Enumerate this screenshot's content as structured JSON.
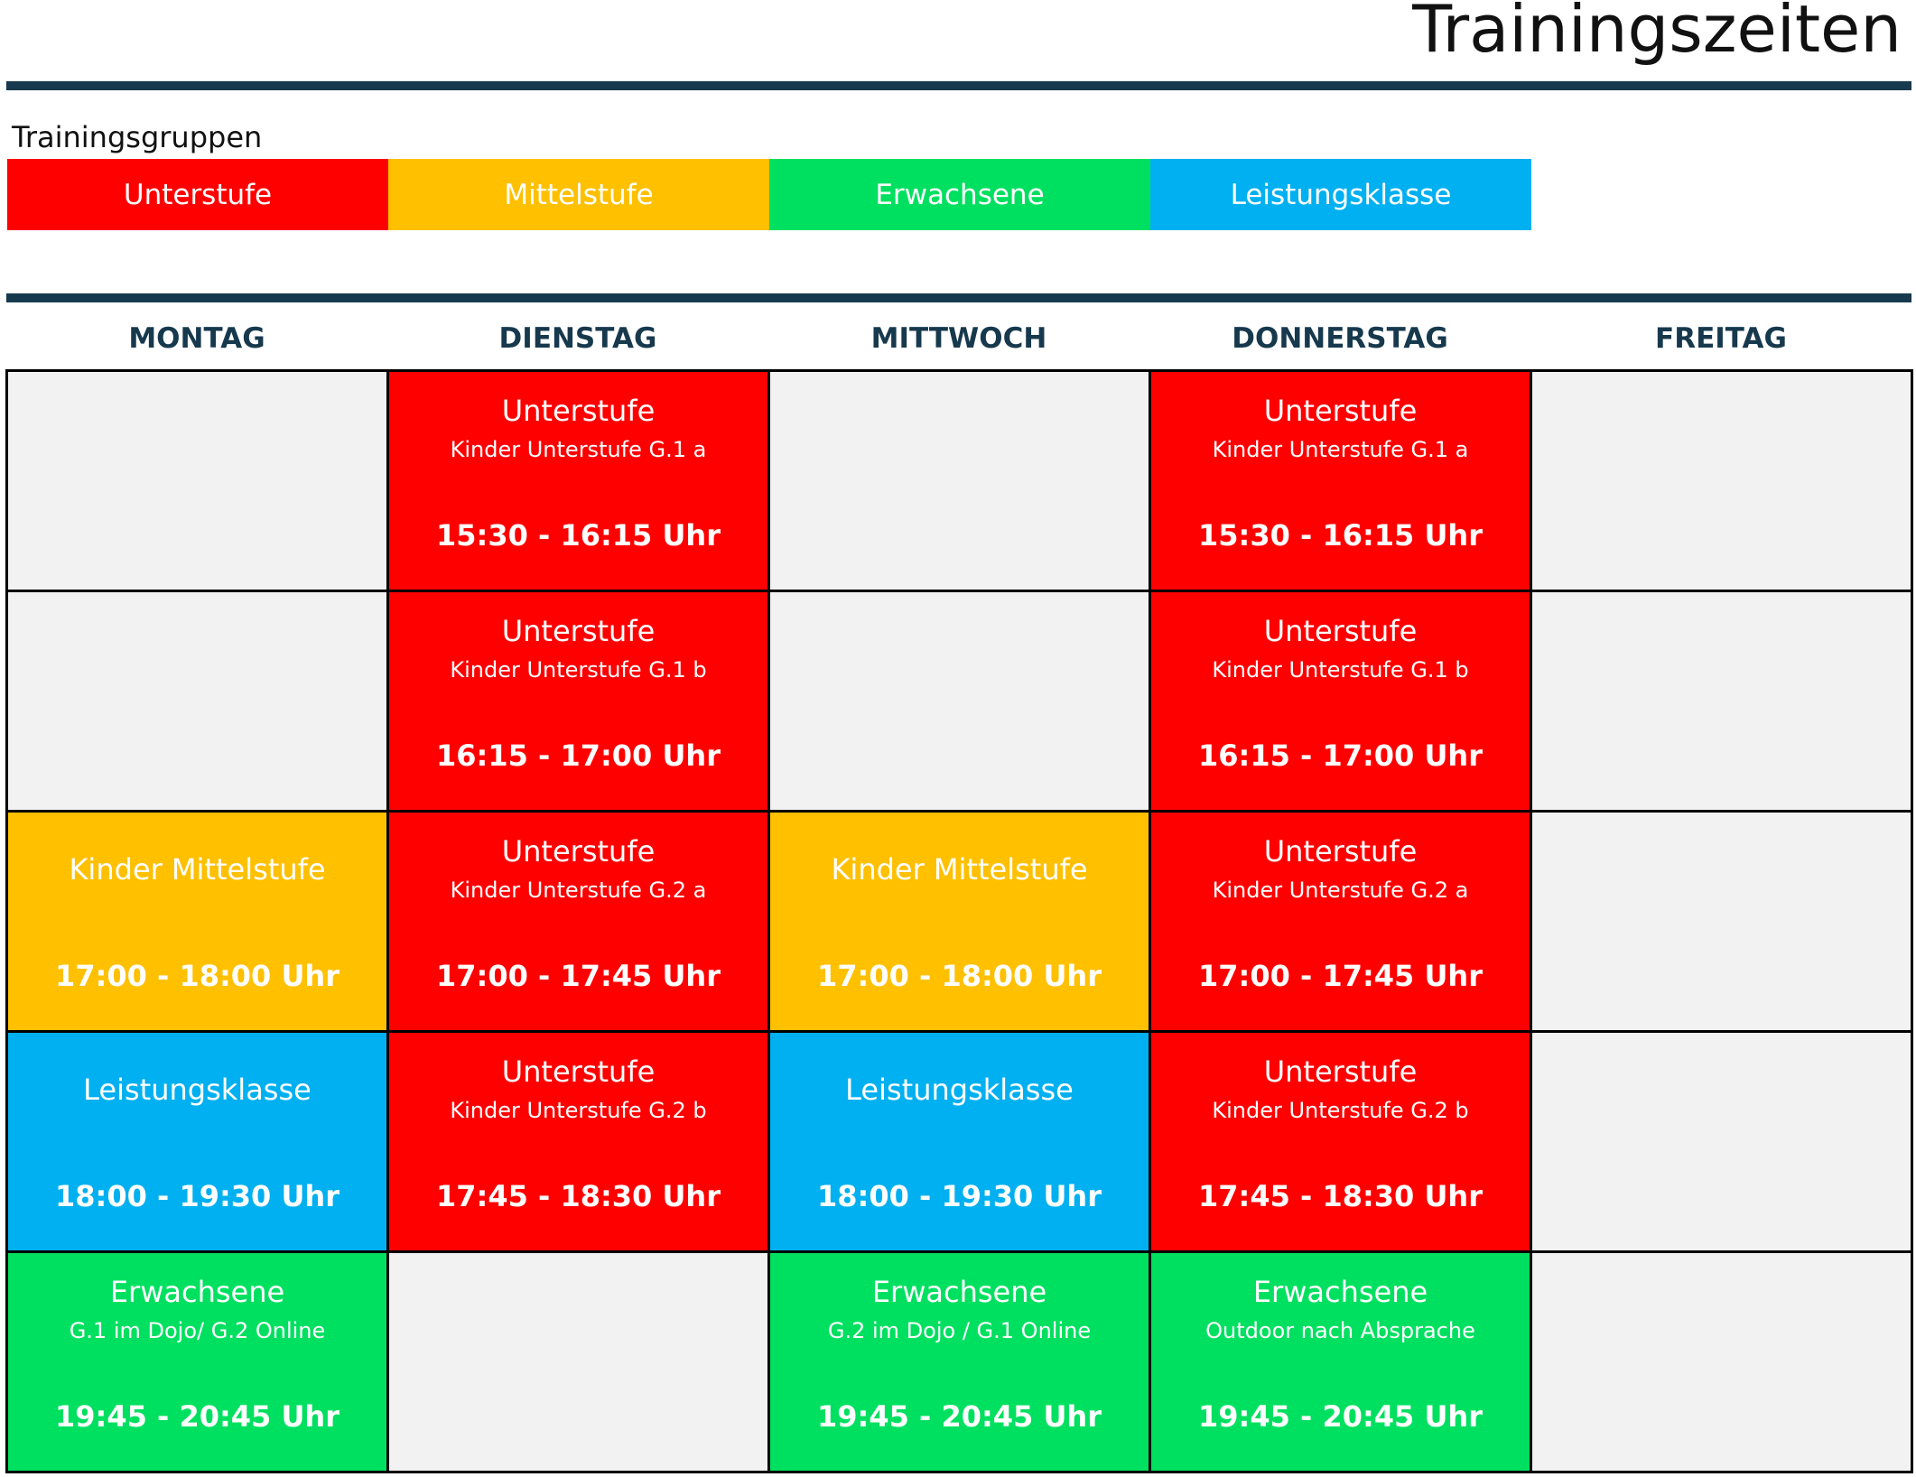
{
  "title": "Trainingszeiten",
  "legend": {
    "heading": "Trainingsgruppen",
    "items": [
      {
        "label": "Unterstufe",
        "color": "#ff0000"
      },
      {
        "label": "Mittelstufe",
        "color": "#ffc000"
      },
      {
        "label": "Erwachsene",
        "color": "#00e060"
      },
      {
        "label": "Leistungsklasse",
        "color": "#00b0f0"
      }
    ]
  },
  "days": [
    "MONTAG",
    "DIENSTAG",
    "MITTWOCH",
    "DONNERSTAG",
    "FREITAG"
  ],
  "schedule": [
    [
      null,
      {
        "group": "Unterstufe",
        "title": "Unterstufe",
        "sub": "Kinder Unterstufe G.1 a",
        "time": "15:30 - 16:15 Uhr"
      },
      null,
      {
        "group": "Unterstufe",
        "title": "Unterstufe",
        "sub": "Kinder Unterstufe G.1 a",
        "time": "15:30 - 16:15 Uhr"
      },
      null
    ],
    [
      null,
      {
        "group": "Unterstufe",
        "title": "Unterstufe",
        "sub": "Kinder Unterstufe G.1 b",
        "time": "16:15 - 17:00 Uhr"
      },
      null,
      {
        "group": "Unterstufe",
        "title": "Unterstufe",
        "sub": "Kinder Unterstufe G.1 b",
        "time": "16:15 - 17:00 Uhr"
      },
      null
    ],
    [
      {
        "group": "Mittelstufe",
        "title": "Kinder Mittelstufe",
        "sub": "",
        "time": "17:00 - 18:00 Uhr"
      },
      {
        "group": "Unterstufe",
        "title": "Unterstufe",
        "sub": "Kinder Unterstufe G.2 a",
        "time": "17:00 - 17:45 Uhr"
      },
      {
        "group": "Mittelstufe",
        "title": "Kinder Mittelstufe",
        "sub": "",
        "time": "17:00 - 18:00 Uhr"
      },
      {
        "group": "Unterstufe",
        "title": "Unterstufe",
        "sub": "Kinder Unterstufe G.2 a",
        "time": "17:00 - 17:45 Uhr"
      },
      null
    ],
    [
      {
        "group": "Leistungsklasse",
        "title": "Leistungsklasse",
        "sub": "",
        "time": "18:00 - 19:30 Uhr"
      },
      {
        "group": "Unterstufe",
        "title": "Unterstufe",
        "sub": "Kinder Unterstufe G.2 b",
        "time": "17:45 - 18:30 Uhr"
      },
      {
        "group": "Leistungsklasse",
        "title": "Leistungsklasse",
        "sub": "",
        "time": "18:00 - 19:30 Uhr"
      },
      {
        "group": "Unterstufe",
        "title": "Unterstufe",
        "sub": "Kinder Unterstufe G.2 b",
        "time": "17:45 - 18:30 Uhr"
      },
      null
    ],
    [
      {
        "group": "Erwachsene",
        "title": "Erwachsene",
        "sub": "G.1 im Dojo/ G.2 Online",
        "time": "19:45 - 20:45 Uhr"
      },
      null,
      {
        "group": "Erwachsene",
        "title": "Erwachsene",
        "sub": "G.2 im Dojo / G.1 Online",
        "time": "19:45 - 20:45 Uhr"
      },
      {
        "group": "Erwachsene",
        "title": "Erwachsene",
        "sub": "Outdoor nach Absprache",
        "time": "19:45 - 20:45 Uhr"
      },
      null
    ]
  ]
}
